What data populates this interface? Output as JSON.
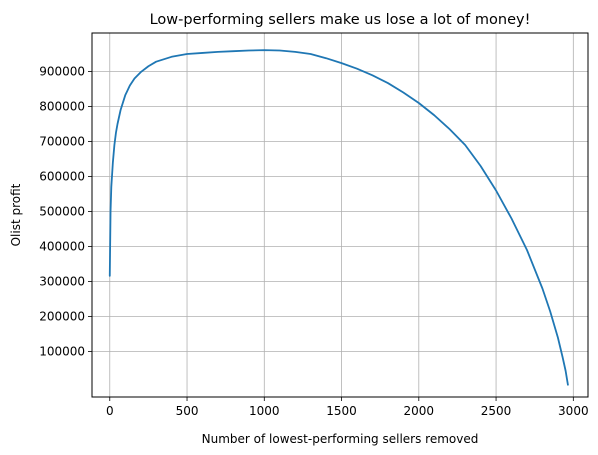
{
  "chart_data": {
    "type": "line",
    "title": "Low-performing sellers make us lose a lot of money!",
    "xlabel": "Number of lowest-performing sellers removed",
    "ylabel": "Olist profit",
    "xlim": [
      -115,
      3095
    ],
    "ylim": [
      -30000,
      1010000
    ],
    "xticks": [
      0,
      500,
      1000,
      1500,
      2000,
      2500,
      3000
    ],
    "yticks": [
      100000,
      200000,
      300000,
      400000,
      500000,
      600000,
      700000,
      800000,
      900000
    ],
    "xtick_labels": [
      "0",
      "500",
      "1000",
      "1500",
      "2000",
      "2500",
      "3000"
    ],
    "ytick_labels": [
      "100000",
      "200000",
      "300000",
      "400000",
      "500000",
      "600000",
      "700000",
      "800000",
      "900000"
    ],
    "grid": true,
    "line_color": "#1f77b4",
    "series": [
      {
        "x": [
          0,
          5,
          10,
          20,
          30,
          40,
          50,
          70,
          100,
          130,
          160,
          200,
          250,
          300,
          400,
          500,
          600,
          700,
          800,
          900,
          1000,
          1100,
          1200,
          1300,
          1400,
          1500,
          1600,
          1700,
          1800,
          1900,
          2000,
          2100,
          2200,
          2300,
          2400,
          2500,
          2600,
          2700,
          2800,
          2850,
          2900,
          2930,
          2950,
          2965
        ],
        "y": [
          316000,
          500000,
          570000,
          640000,
          690000,
          725000,
          750000,
          790000,
          832000,
          860000,
          880000,
          898000,
          915000,
          928000,
          942000,
          950000,
          953000,
          956000,
          958000,
          960000,
          961000,
          960000,
          956000,
          950000,
          938000,
          924000,
          908000,
          889000,
          867000,
          840000,
          810000,
          775000,
          735000,
          690000,
          630000,
          560000,
          480000,
          390000,
          280000,
          215000,
          140000,
          85000,
          45000,
          5000
        ]
      }
    ]
  }
}
